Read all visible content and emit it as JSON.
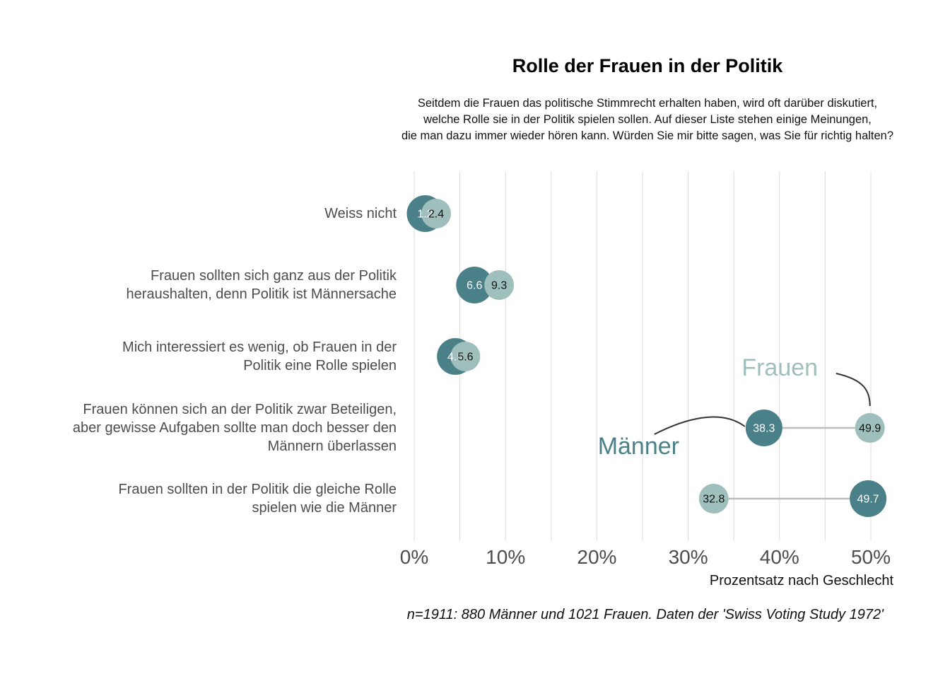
{
  "chart_data": {
    "type": "scatter",
    "title": "Rolle der Frauen in der Politik",
    "subtitle": [
      "Seitdem die Frauen das politische Stimmrecht erhalten haben, wird oft darüber diskutiert,",
      "welche Rolle sie in der Politik spielen sollen. Auf dieser Liste stehen einige Meinungen,",
      "die man dazu immer wieder hören kann. Würden Sie mir bitte sagen, was Sie für richtig halten?"
    ],
    "categories": [
      [
        "Weiss nicht"
      ],
      [
        "Frauen sollten sich ganz aus der Politik",
        "heraushalten, denn Politik ist Männersache"
      ],
      [
        "Mich interessiert es wenig, ob Frauen in der",
        "Politik eine Rolle spielen"
      ],
      [
        "Frauen können sich an der Politik zwar Beteiligen,",
        "aber gewisse Aufgaben sollte man doch besser den",
        "Männern überlassen"
      ],
      [
        "Frauen sollten in der Politik die gleiche Rolle",
        "spielen wie die Männer"
      ]
    ],
    "series": [
      {
        "name": "Männer",
        "color": "#4a8189",
        "text_color": "#ffffff",
        "values": [
          1.2,
          6.6,
          4.5,
          38.3,
          49.7
        ]
      },
      {
        "name": "Frauen",
        "color": "#9ebfbb",
        "text_color": "#111111",
        "values": [
          2.4,
          9.3,
          5.6,
          49.9,
          32.8
        ]
      }
    ],
    "xlim": [
      0,
      50
    ],
    "xticks": [
      0,
      10,
      20,
      30,
      40,
      50
    ],
    "xtick_labels": [
      "0%",
      "10%",
      "20%",
      "30%",
      "40%",
      "50%"
    ],
    "xlabel": "Prozentsatz nach Geschlecht",
    "caption": "n=1911: 880 Männer und 1021 Frauen. Daten der 'Swiss Voting Study 1972'",
    "grid": true,
    "connector_color": "#bdbdbd",
    "gridline_color": "#dcdcdc"
  }
}
